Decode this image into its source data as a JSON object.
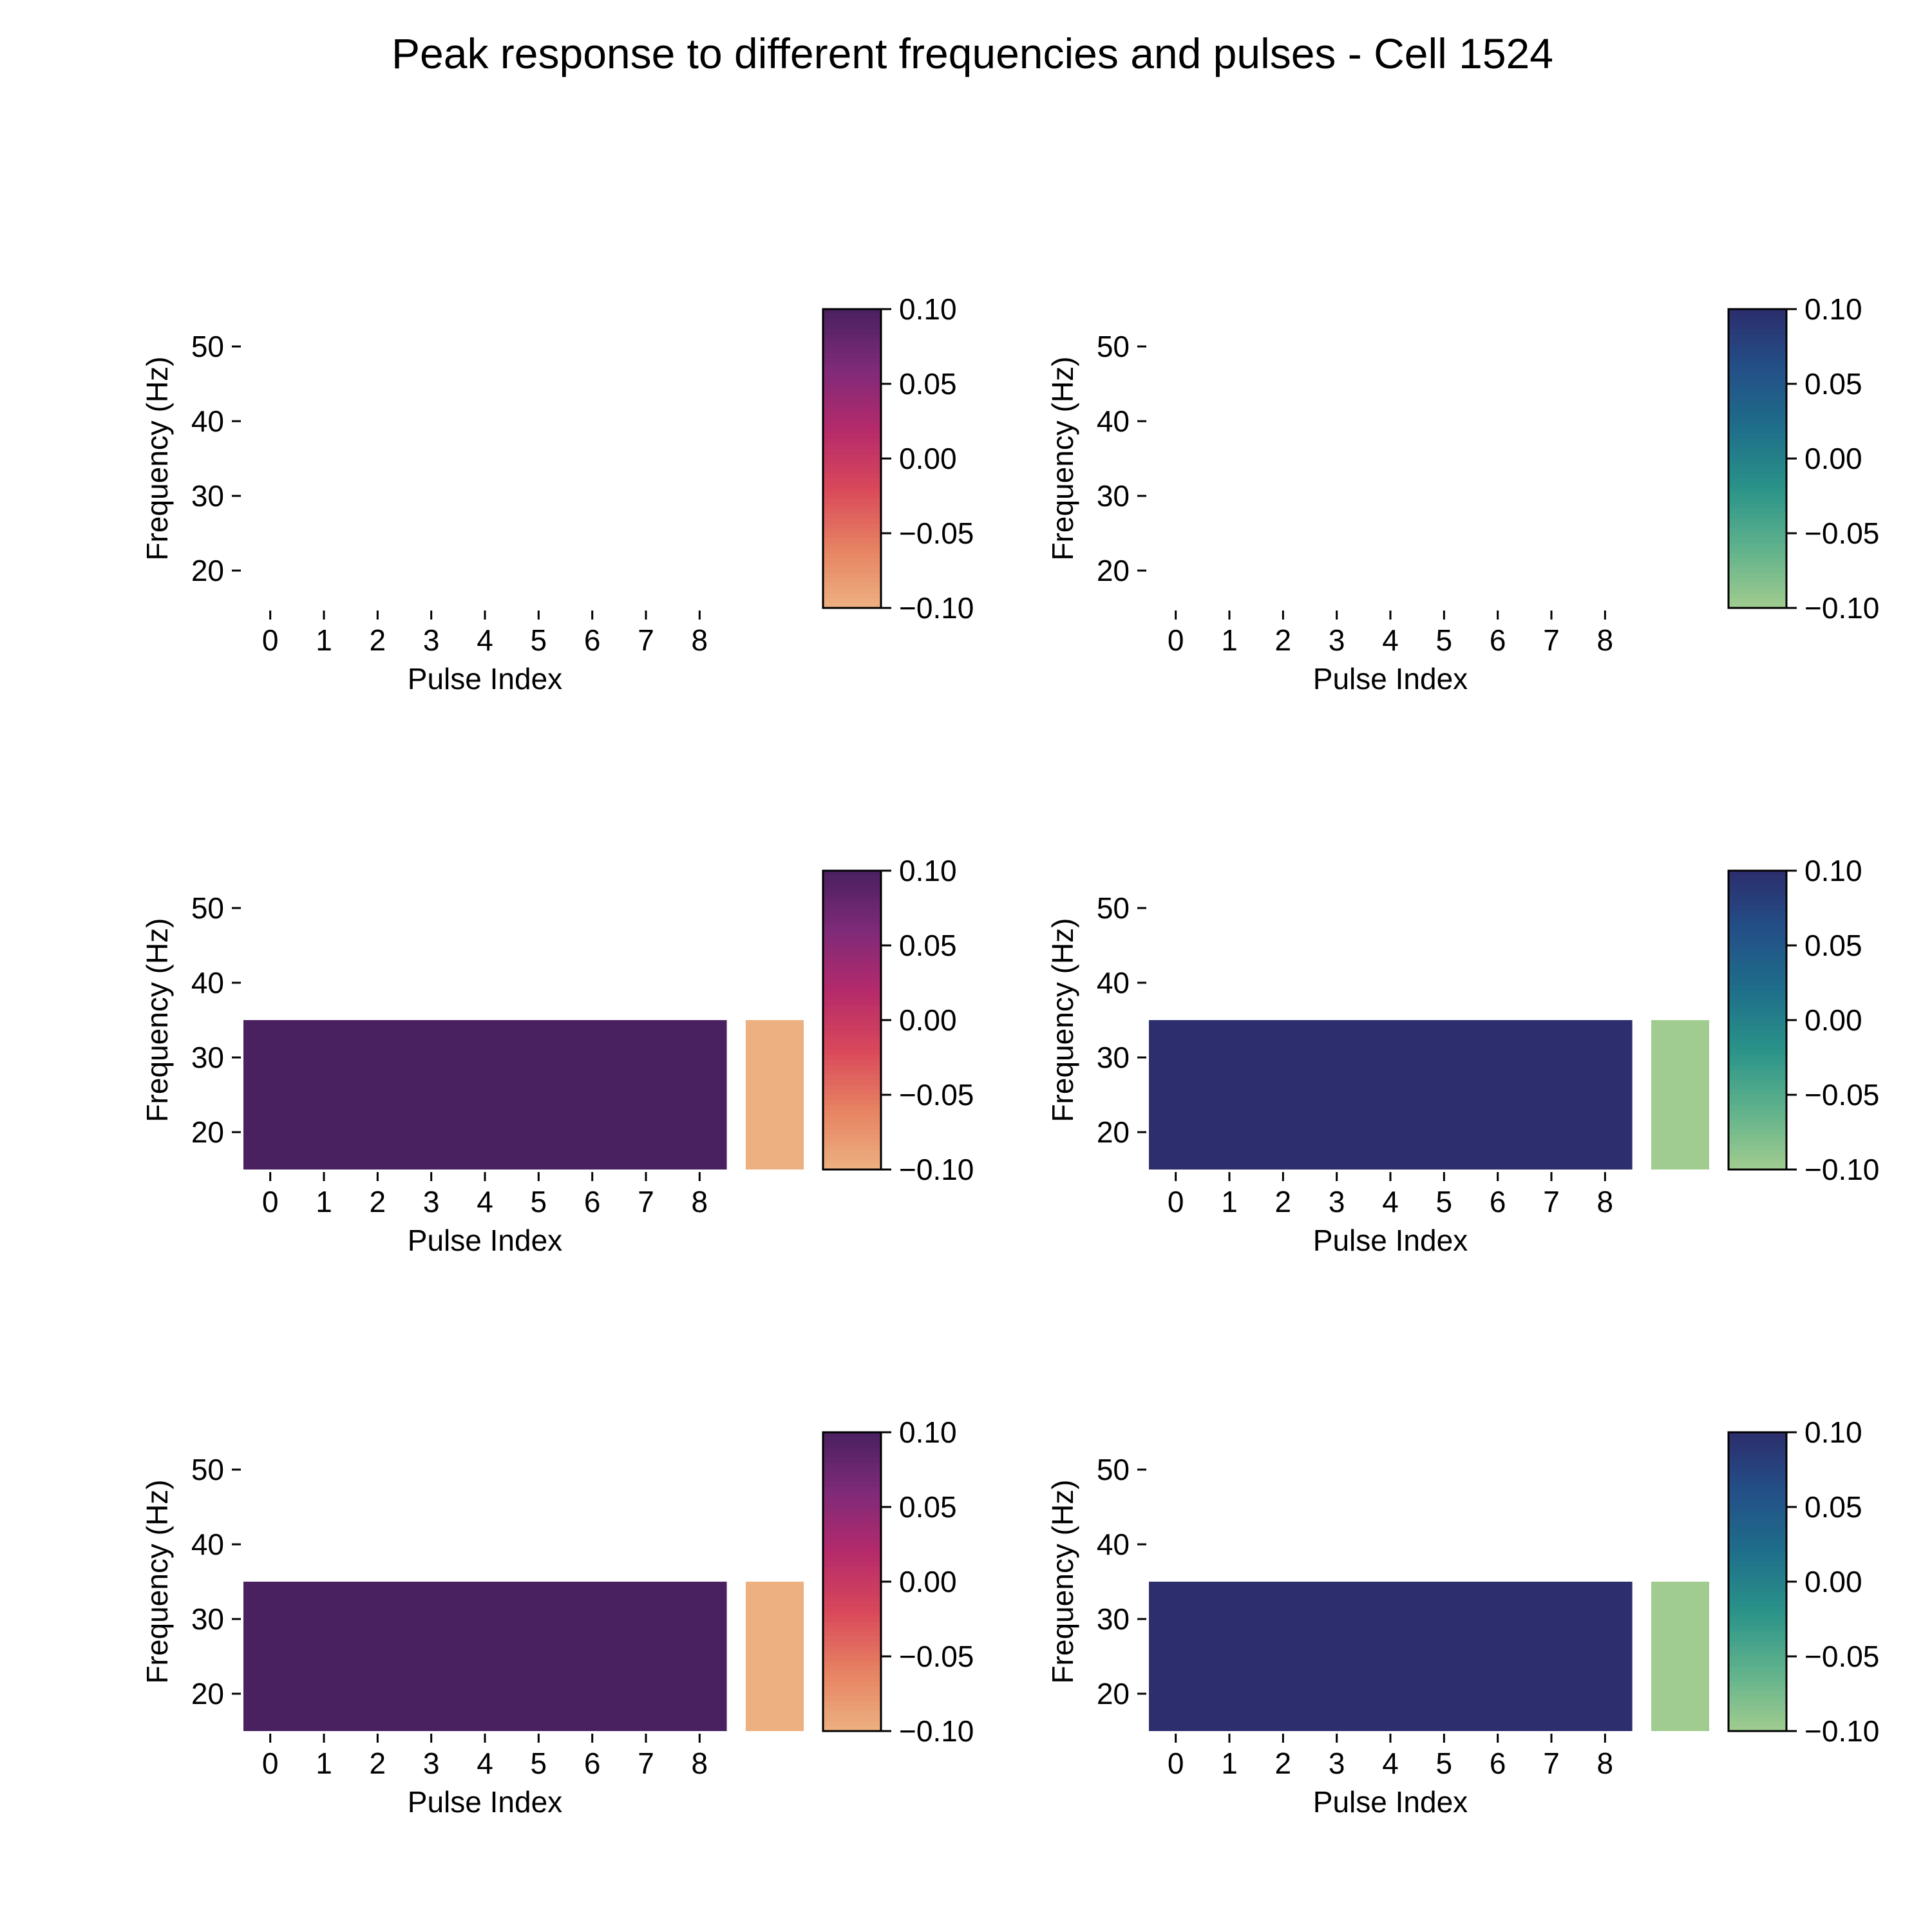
{
  "figure": {
    "title": "Peak response to different frequencies and pulses - Cell 1524"
  },
  "colormaps": {
    "purple": [
      "#edb081",
      "#e78262",
      "#d9485a",
      "#b42a6b",
      "#7f2a79",
      "#4a2160"
    ],
    "blue": [
      "#a1cc8f",
      "#5fb28c",
      "#2a9389",
      "#1e6e8a",
      "#235088",
      "#2c2e6d"
    ]
  },
  "chart_data": [
    {
      "type": "heatmap",
      "panel": "row1-left",
      "colormap": "purple",
      "xlabel": "Pulse Index",
      "ylabel": "Frequency (Hz)",
      "x_ticks": [
        "0",
        "1",
        "2",
        "3",
        "4",
        "5",
        "6",
        "7",
        "8"
      ],
      "y_ticks": [
        "20",
        "30",
        "40",
        "50"
      ],
      "ylim": [
        15,
        55
      ],
      "rows": [],
      "extra_column": null,
      "colorbar": {
        "min": -0.1,
        "max": 0.1,
        "ticks": [
          "0.10",
          "0.05",
          "0.00",
          "−0.05",
          "−0.10"
        ]
      }
    },
    {
      "type": "heatmap",
      "panel": "row1-right",
      "colormap": "blue",
      "xlabel": "Pulse Index",
      "ylabel": "Frequency (Hz)",
      "x_ticks": [
        "0",
        "1",
        "2",
        "3",
        "4",
        "5",
        "6",
        "7",
        "8"
      ],
      "y_ticks": [
        "20",
        "30",
        "40",
        "50"
      ],
      "ylim": [
        15,
        55
      ],
      "rows": [],
      "extra_column": null,
      "colorbar": {
        "min": -0.1,
        "max": 0.1,
        "ticks": [
          "0.10",
          "0.05",
          "0.00",
          "−0.05",
          "−0.10"
        ]
      }
    },
    {
      "type": "heatmap",
      "panel": "row2-left",
      "colormap": "purple",
      "xlabel": "Pulse Index",
      "ylabel": "Frequency (Hz)",
      "x_ticks": [
        "0",
        "1",
        "2",
        "3",
        "4",
        "5",
        "6",
        "7",
        "8"
      ],
      "y_ticks": [
        "20",
        "30",
        "40",
        "50"
      ],
      "ylim": [
        15,
        55
      ],
      "rows": [
        {
          "frequency_range": [
            15,
            35
          ],
          "values": [
            0.1,
            0.1,
            0.1,
            0.1,
            0.1,
            0.1,
            0.1,
            0.1,
            0.1
          ]
        }
      ],
      "extra_column": {
        "value": -0.1
      },
      "colorbar": {
        "min": -0.1,
        "max": 0.1,
        "ticks": [
          "0.10",
          "0.05",
          "0.00",
          "−0.05",
          "−0.10"
        ]
      }
    },
    {
      "type": "heatmap",
      "panel": "row2-right",
      "colormap": "blue",
      "xlabel": "Pulse Index",
      "ylabel": "Frequency (Hz)",
      "x_ticks": [
        "0",
        "1",
        "2",
        "3",
        "4",
        "5",
        "6",
        "7",
        "8"
      ],
      "y_ticks": [
        "20",
        "30",
        "40",
        "50"
      ],
      "ylim": [
        15,
        55
      ],
      "rows": [
        {
          "frequency_range": [
            15,
            35
          ],
          "values": [
            0.1,
            0.1,
            0.1,
            0.1,
            0.1,
            0.1,
            0.1,
            0.1,
            0.1
          ]
        }
      ],
      "extra_column": {
        "value": -0.1
      },
      "colorbar": {
        "min": -0.1,
        "max": 0.1,
        "ticks": [
          "0.10",
          "0.05",
          "0.00",
          "−0.05",
          "−0.10"
        ]
      }
    },
    {
      "type": "heatmap",
      "panel": "row3-left",
      "colormap": "purple",
      "xlabel": "Pulse Index",
      "ylabel": "Frequency (Hz)",
      "x_ticks": [
        "0",
        "1",
        "2",
        "3",
        "4",
        "5",
        "6",
        "7",
        "8"
      ],
      "y_ticks": [
        "20",
        "30",
        "40",
        "50"
      ],
      "ylim": [
        15,
        55
      ],
      "rows": [
        {
          "frequency_range": [
            15,
            35
          ],
          "values": [
            0.1,
            0.1,
            0.1,
            0.1,
            0.1,
            0.1,
            0.1,
            0.1,
            0.1
          ]
        }
      ],
      "extra_column": {
        "value": -0.1
      },
      "colorbar": {
        "min": -0.1,
        "max": 0.1,
        "ticks": [
          "0.10",
          "0.05",
          "0.00",
          "−0.05",
          "−0.10"
        ]
      }
    },
    {
      "type": "heatmap",
      "panel": "row3-right",
      "colormap": "blue",
      "xlabel": "Pulse Index",
      "ylabel": "Frequency (Hz)",
      "x_ticks": [
        "0",
        "1",
        "2",
        "3",
        "4",
        "5",
        "6",
        "7",
        "8"
      ],
      "y_ticks": [
        "20",
        "30",
        "40",
        "50"
      ],
      "ylim": [
        15,
        55
      ],
      "rows": [
        {
          "frequency_range": [
            15,
            35
          ],
          "values": [
            0.1,
            0.1,
            0.1,
            0.1,
            0.1,
            0.1,
            0.1,
            0.1,
            0.1
          ]
        }
      ],
      "extra_column": {
        "value": -0.1
      },
      "colorbar": {
        "min": -0.1,
        "max": 0.1,
        "ticks": [
          "0.10",
          "0.05",
          "0.00",
          "−0.05",
          "−0.10"
        ]
      }
    }
  ]
}
